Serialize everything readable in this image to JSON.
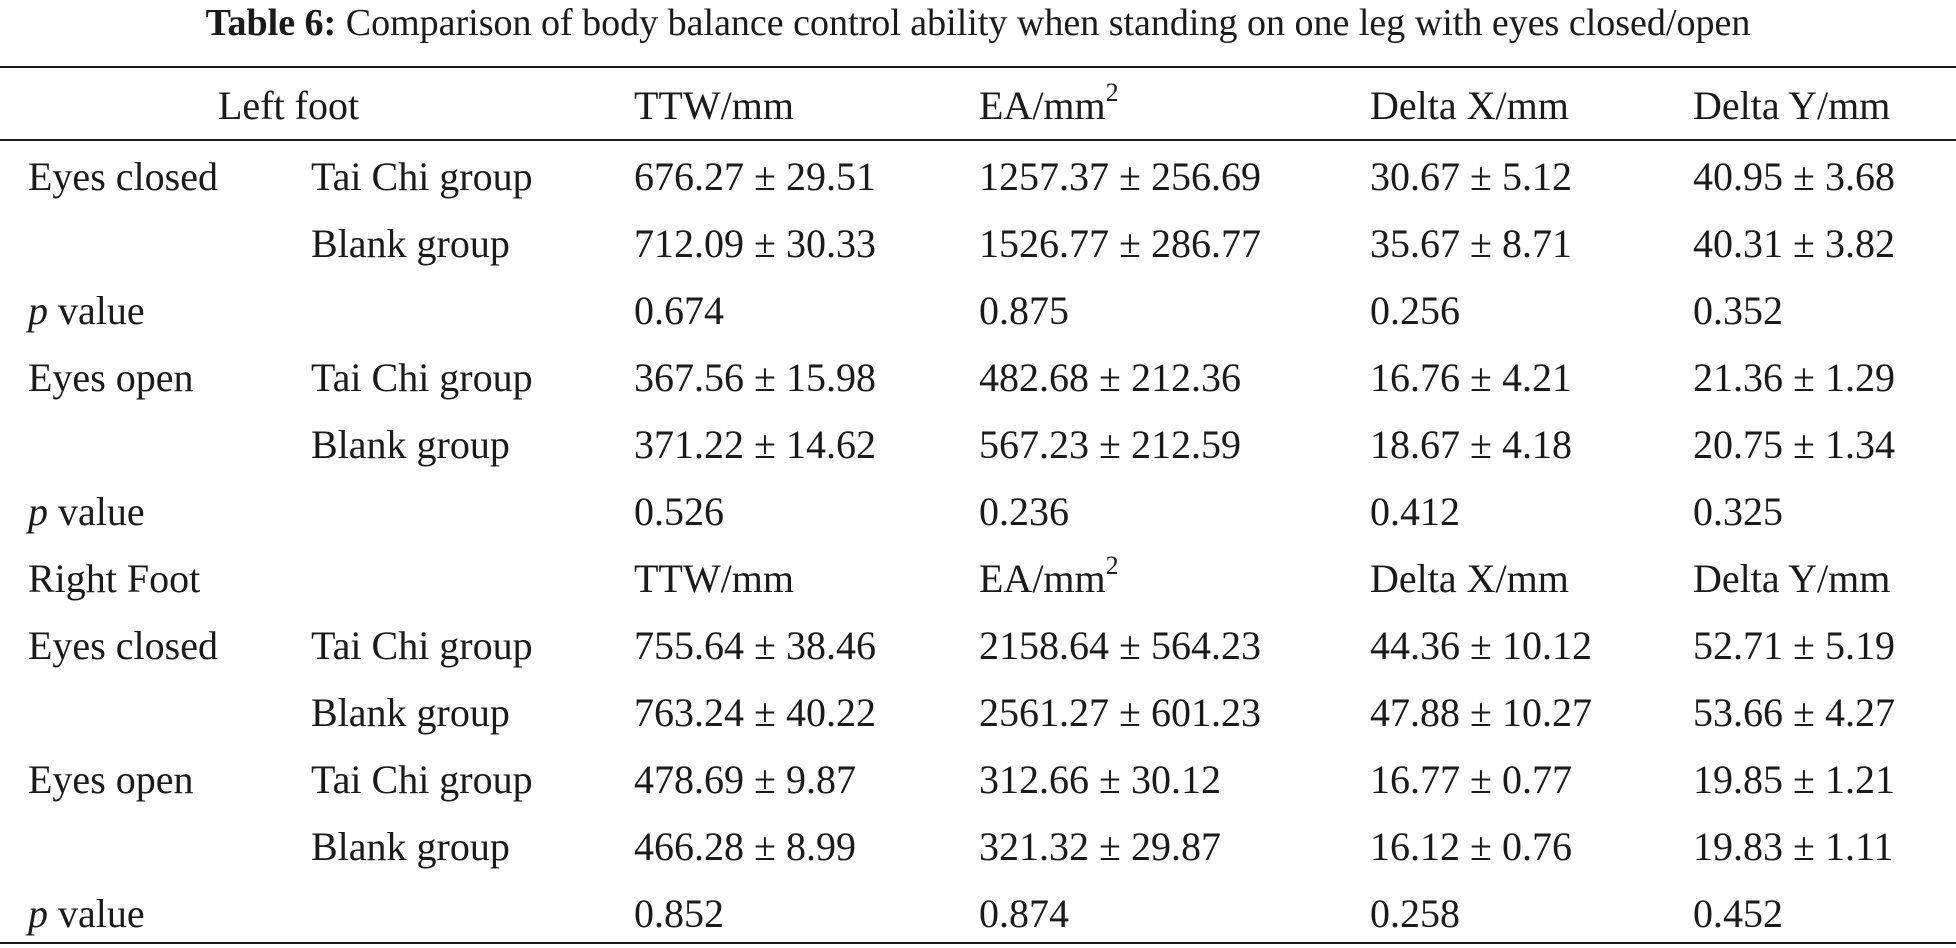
{
  "caption": {
    "label": "Table 6:",
    "text": "Comparison of body balance control ability when standing on one leg with eyes closed/open"
  },
  "header": {
    "group": "Left foot",
    "col_ttw": "TTW/mm",
    "col_ea": "EA/mm",
    "col_ea_sup": "2",
    "col_dx": "Delta X/mm",
    "col_dy": "Delta Y/mm"
  },
  "rows": [
    {
      "cond": "Eyes closed",
      "group": "Tai Chi group",
      "ttw": "676.27 ± 29.51",
      "ea": "1257.37 ± 256.69",
      "dx": "30.67 ± 5.12",
      "dy": "40.95 ± 3.68"
    },
    {
      "cond": "",
      "group": "Blank group",
      "ttw": "712.09 ± 30.33",
      "ea": "1526.77 ± 286.77",
      "dx": "35.67 ± 8.71",
      "dy": "40.31 ± 3.82"
    },
    {
      "p": true,
      "p_sym": "p",
      "p_word": " value",
      "ttw": "0.674",
      "ea": "0.875",
      "dx": "0.256",
      "dy": "0.352"
    },
    {
      "cond": "Eyes open",
      "group": "Tai Chi group",
      "ttw": "367.56 ± 15.98",
      "ea": "482.68 ± 212.36",
      "dx": "16.76 ± 4.21",
      "dy": "21.36 ± 1.29"
    },
    {
      "cond": "",
      "group": "Blank group",
      "ttw": "371.22 ± 14.62",
      "ea": "567.23 ± 212.59",
      "dx": "18.67 ± 4.18",
      "dy": "20.75 ± 1.34"
    },
    {
      "p": true,
      "p_sym": "p",
      "p_word": " value",
      "ttw": "0.526",
      "ea": "0.236",
      "dx": "0.412",
      "dy": "0.325"
    },
    {
      "subheader": true,
      "cond": "Right Foot",
      "ttw": "TTW/mm",
      "ea": "EA/mm",
      "ea_sup": "2",
      "dx": "Delta X/mm",
      "dy": "Delta Y/mm"
    },
    {
      "cond": "Eyes closed",
      "group": "Tai Chi group",
      "ttw": "755.64 ± 38.46",
      "ea": "2158.64 ± 564.23",
      "dx": "44.36 ± 10.12",
      "dy": "52.71 ± 5.19"
    },
    {
      "cond": "",
      "group": "Blank group",
      "ttw": "763.24 ± 40.22",
      "ea": "2561.27 ± 601.23",
      "dx": "47.88 ± 10.27",
      "dy": "53.66 ± 4.27"
    },
    {
      "cond": "Eyes open",
      "group": "Tai Chi group",
      "ttw": "478.69 ± 9.87",
      "ea": "312.66 ± 30.12",
      "dx": "16.77 ± 0.77",
      "dy": "19.85 ± 1.21"
    },
    {
      "cond": "",
      "group": "Blank group",
      "ttw": "466.28 ± 8.99",
      "ea": "321.32 ± 29.87",
      "dx": "16.12 ± 0.76",
      "dy": "19.83 ± 1.11"
    },
    {
      "p": true,
      "p_sym": "p",
      "p_word": " value",
      "ttw": "0.852",
      "ea": "0.874",
      "dx": "0.258",
      "dy": "0.452"
    }
  ]
}
